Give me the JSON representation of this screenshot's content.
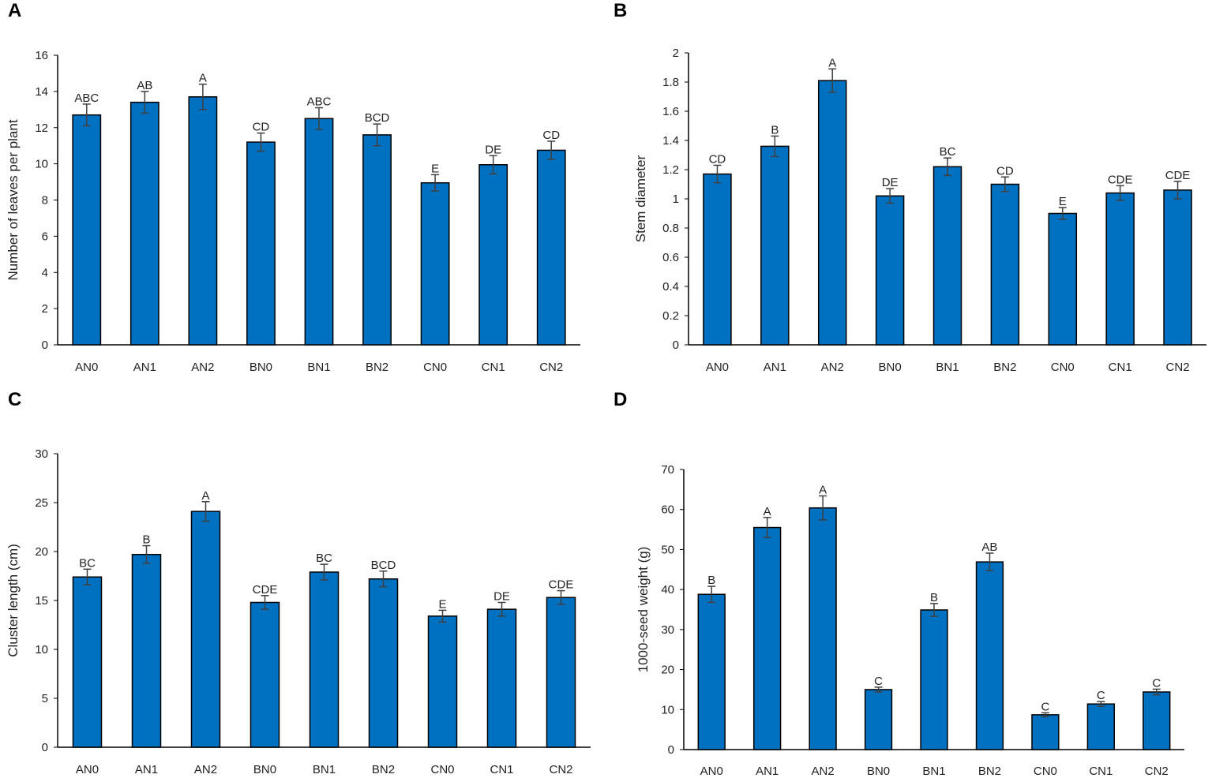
{
  "bar_color": "#0070C0",
  "errorbar_color": "#404040",
  "chart_data": [
    {
      "panel": "A",
      "type": "bar",
      "title": "",
      "xlabel": "",
      "ylabel": "Number of leaves per plant",
      "ylim": [
        0,
        16
      ],
      "yticks": [
        0,
        2,
        4,
        6,
        8,
        10,
        12,
        14,
        16
      ],
      "categories": [
        "AN0",
        "AN1",
        "AN2",
        "BN0",
        "BN1",
        "BN2",
        "CN0",
        "CN1",
        "CN2"
      ],
      "values": [
        12.7,
        13.4,
        13.7,
        11.2,
        12.5,
        11.6,
        8.95,
        9.95,
        10.75
      ],
      "errors": [
        0.6,
        0.6,
        0.7,
        0.5,
        0.6,
        0.6,
        0.45,
        0.5,
        0.5
      ],
      "letters": [
        "ABC",
        "AB",
        "A",
        "CD",
        "ABC",
        "BCD",
        "E",
        "DE",
        "CD"
      ]
    },
    {
      "panel": "B",
      "type": "bar",
      "title": "",
      "xlabel": "",
      "ylabel": "Stem diameter",
      "ylim": [
        0,
        2
      ],
      "yticks": [
        0,
        0.2,
        0.4,
        0.6,
        0.8,
        1,
        1.2,
        1.4,
        1.6,
        1.8,
        2
      ],
      "categories": [
        "AN0",
        "AN1",
        "AN2",
        "BN0",
        "BN1",
        "BN2",
        "CN0",
        "CN1",
        "CN2"
      ],
      "values": [
        1.17,
        1.36,
        1.81,
        1.02,
        1.22,
        1.1,
        0.9,
        1.04,
        1.06
      ],
      "errors": [
        0.06,
        0.07,
        0.08,
        0.05,
        0.06,
        0.05,
        0.04,
        0.05,
        0.06
      ],
      "letters": [
        "CD",
        "B",
        "A",
        "DE",
        "BC",
        "CD",
        "E",
        "CDE",
        "CDE"
      ]
    },
    {
      "panel": "C",
      "type": "bar",
      "title": "",
      "xlabel": "",
      "ylabel": "Cluster length (cm)",
      "ylim": [
        0,
        30
      ],
      "yticks": [
        0,
        5,
        10,
        15,
        20,
        25,
        30
      ],
      "categories": [
        "AN0",
        "AN1",
        "AN2",
        "BN0",
        "BN1",
        "BN2",
        "CN0",
        "CN1",
        "CN2"
      ],
      "values": [
        17.4,
        19.7,
        24.1,
        14.8,
        17.9,
        17.2,
        13.4,
        14.1,
        15.3
      ],
      "errors": [
        0.8,
        0.9,
        1.0,
        0.7,
        0.8,
        0.8,
        0.6,
        0.7,
        0.7
      ],
      "letters": [
        "BC",
        "B",
        "A",
        "CDE",
        "BC",
        "BCD",
        "E",
        "DE",
        "CDE"
      ]
    },
    {
      "panel": "D",
      "type": "bar",
      "title": "",
      "xlabel": "",
      "ylabel": "1000-seed weight  (g)",
      "ylim": [
        0,
        70
      ],
      "yticks": [
        0,
        10,
        20,
        30,
        40,
        50,
        60,
        70
      ],
      "categories": [
        "AN0",
        "AN1",
        "AN2",
        "BN0",
        "BN1",
        "BN2",
        "CN0",
        "CN1",
        "CN2"
      ],
      "values": [
        38.8,
        55.5,
        60.4,
        15.0,
        34.9,
        46.9,
        8.7,
        11.4,
        14.4
      ],
      "errors": [
        2.0,
        2.5,
        3.0,
        0.6,
        1.6,
        2.2,
        0.5,
        0.6,
        0.7
      ],
      "letters": [
        "B",
        "A",
        "A",
        "C",
        "B",
        "AB",
        "C",
        "C",
        "C"
      ]
    }
  ]
}
